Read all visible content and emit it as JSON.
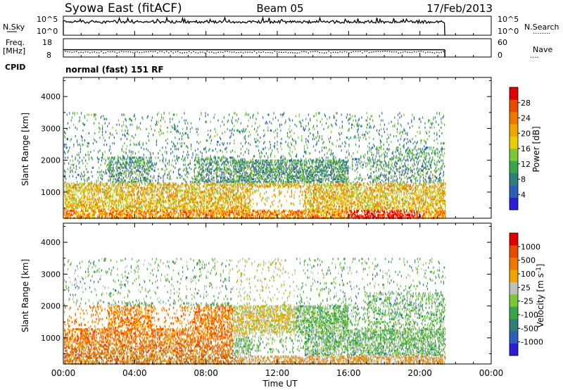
{
  "header": {
    "station": "Syowa East (fitACF)",
    "beam": "Beam 05",
    "date": "17/Feb/2013"
  },
  "left_labels": {
    "nsky": "N.Sky",
    "freq_top": "Freq.",
    "freq_unit": "[MHz]",
    "cpid": "CPID"
  },
  "right_labels": {
    "nsearch": "N.Search",
    "nsearch_dots": "........",
    "nave": "Nave",
    "nave_dots": "...."
  },
  "cpid_text": "normal (fast) 151 RF",
  "colors": {
    "power": [
      "#2a1fd6",
      "#2d5fb8",
      "#2e7f7a",
      "#37a64a",
      "#7cc834",
      "#e8d000",
      "#f0a500",
      "#f07800",
      "#e84a00",
      "#e00000"
    ],
    "velocity": [
      "#2a1fd6",
      "#2d5fb8",
      "#2e7f7a",
      "#37a64a",
      "#7cc834",
      "#bfbfbf",
      "#f0a500",
      "#f07800",
      "#e84a00",
      "#e00000"
    ]
  },
  "chart_data": [
    {
      "type": "line",
      "name": "nsky-panel",
      "ylabel": "N.Sky",
      "yticks_left": [
        "10^5",
        "10^0"
      ],
      "yticks_right": [
        "10^5",
        "10^0"
      ],
      "x_range_hours": [
        0,
        24
      ],
      "data_end_hours": 21.4
    },
    {
      "type": "scatter",
      "name": "freq-nave-panel",
      "yticks_left": [
        "18",
        "8"
      ],
      "yticks_right": [
        "60",
        "0"
      ],
      "ylim_left": [
        8,
        18
      ],
      "ylim_right": [
        0,
        60
      ],
      "freq_mhz": 12,
      "nave": 16,
      "x_range_hours": [
        0,
        24
      ],
      "data_end_hours": 21.4
    },
    {
      "type": "heatmap",
      "name": "power-panel",
      "ylabel": "Slant Range [km]",
      "yticks": [
        "1000",
        "2000",
        "3000",
        "4000"
      ],
      "ylim": [
        180,
        4600
      ],
      "colorbar_label": "Power [dB]",
      "colorbar_ticks": [
        "4",
        "8",
        "12",
        "16",
        "20",
        "24",
        "28"
      ],
      "x_range_hours": [
        0,
        24
      ]
    },
    {
      "type": "heatmap",
      "name": "velocity-panel",
      "ylabel": "Slant Range [km]",
      "yticks": [
        "1000",
        "2000",
        "3000",
        "4000"
      ],
      "ylim": [
        180,
        4600
      ],
      "colorbar_label": "Velocity [m s",
      "colorbar_label_exp": "-1",
      "colorbar_label_end": "]",
      "colorbar_ticks": [
        "1000",
        "500",
        "100",
        "25",
        "-25",
        "-100",
        "-500",
        "-1000"
      ],
      "x_range_hours": [
        0,
        24
      ]
    }
  ],
  "xaxis": {
    "ticks": [
      "00:00",
      "04:00",
      "08:00",
      "12:00",
      "16:00",
      "20:00",
      "00:00"
    ],
    "label": "Time UT"
  }
}
